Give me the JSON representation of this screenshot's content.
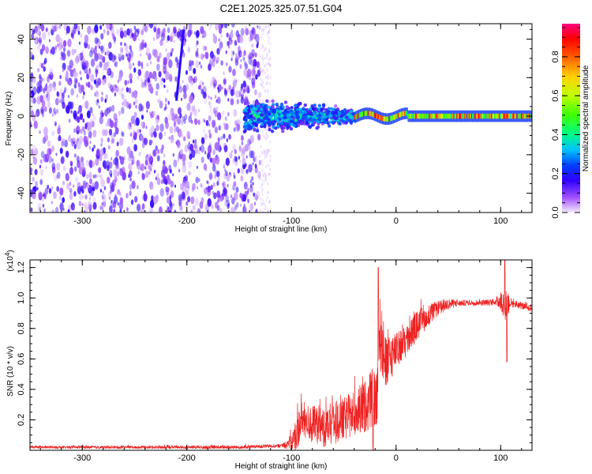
{
  "title": "C2E1.2025.325.07.51.G04",
  "chart_data": [
    {
      "type": "heatmap",
      "xlabel": "Height of straight line (km)",
      "ylabel": "Frequency (Hz)",
      "xlim": [
        -350,
        130
      ],
      "ylim": [
        -50,
        48
      ],
      "xticks": [
        -300,
        -200,
        -100,
        0,
        100
      ],
      "yticks": [
        -40,
        -20,
        0,
        20,
        40
      ],
      "colorbar": {
        "label": "Normalized spectral amplitude",
        "range": [
          0,
          0.97
        ],
        "ticks": [
          0.0,
          0.2,
          0.4,
          0.6,
          0.8
        ],
        "tick_labels": [
          "0.0",
          "0.2",
          "0.4",
          "0.6",
          "0.8"
        ],
        "colors": [
          "#f4ecff",
          "#a050ff",
          "#3000ff",
          "#0040ff",
          "#00c0ff",
          "#00ff80",
          "#40ff00",
          "#c0ff00",
          "#ffd000",
          "#ff6000",
          "#ff0000",
          "#ff0080"
        ]
      },
      "regions": [
        {
          "name": "noise",
          "x": [
            -350,
            -130
          ],
          "y": [
            -50,
            48
          ],
          "amplitude": [
            0.02,
            0.2
          ]
        },
        {
          "name": "turbulent",
          "x": [
            -145,
            -40
          ],
          "y": [
            -12,
            12
          ],
          "amplitude": [
            0.15,
            0.5
          ]
        },
        {
          "name": "stable-tone",
          "x": [
            -40,
            130
          ],
          "y": [
            -3,
            3
          ],
          "amplitude": [
            0.4,
            0.95
          ]
        }
      ],
      "streak": {
        "x": [
          -210,
          -203
        ],
        "y": [
          8,
          45
        ],
        "amplitude": 0.2
      }
    },
    {
      "type": "line",
      "xlabel": "Height of straight line (km)",
      "ylabel": "SNR (10 * v/v)",
      "y_multiplier": "(x10",
      "y_multiplier_exp": "4",
      "y_multiplier_close": ")",
      "xlim": [
        -350,
        130
      ],
      "ylim": [
        0,
        1.25
      ],
      "xticks": [
        -300,
        -200,
        -100,
        0,
        100
      ],
      "yticks": [
        0.2,
        0.4,
        0.6,
        0.8,
        1.0,
        1.2
      ],
      "ytick_labels": [
        "0.2",
        "0.4",
        "0.6",
        "0.8",
        "1.0",
        "1.2"
      ],
      "color": "#ee2222",
      "series_points": [
        [
          -350,
          0.02
        ],
        [
          -300,
          0.02
        ],
        [
          -250,
          0.02
        ],
        [
          -200,
          0.02
        ],
        [
          -150,
          0.02
        ],
        [
          -110,
          0.03
        ],
        [
          -100,
          0.05
        ],
        [
          -95,
          0.12
        ],
        [
          -90,
          0.2
        ],
        [
          -80,
          0.17
        ],
        [
          -70,
          0.15
        ],
        [
          -60,
          0.18
        ],
        [
          -50,
          0.2
        ],
        [
          -40,
          0.25
        ],
        [
          -30,
          0.28
        ],
        [
          -22,
          0.35
        ],
        [
          -18,
          0.3
        ],
        [
          -16,
          0.8
        ],
        [
          -10,
          0.55
        ],
        [
          -5,
          0.62
        ],
        [
          0,
          0.65
        ],
        [
          10,
          0.72
        ],
        [
          20,
          0.82
        ],
        [
          30,
          0.88
        ],
        [
          40,
          0.93
        ],
        [
          50,
          0.96
        ],
        [
          70,
          0.97
        ],
        [
          90,
          0.97
        ],
        [
          100,
          0.98
        ],
        [
          104,
          0.96
        ],
        [
          108,
          0.97
        ],
        [
          115,
          0.96
        ],
        [
          130,
          0.93
        ]
      ],
      "noise_amplitude": [
        [
          -350,
          0.008
        ],
        [
          -110,
          0.012
        ],
        [
          -100,
          0.05
        ],
        [
          -95,
          0.12
        ],
        [
          -40,
          0.15
        ],
        [
          -20,
          0.2
        ],
        [
          -16,
          0.25
        ],
        [
          0,
          0.12
        ],
        [
          20,
          0.1
        ],
        [
          40,
          0.05
        ],
        [
          60,
          0.02
        ],
        [
          95,
          0.02
        ],
        [
          100,
          0.07
        ],
        [
          106,
          0.12
        ],
        [
          110,
          0.03
        ],
        [
          130,
          0.02
        ]
      ],
      "spikes": [
        {
          "x": -17,
          "y": 1.2
        },
        {
          "x": -22,
          "y": 0.0
        },
        {
          "x": 104,
          "y": 1.25
        },
        {
          "x": 106,
          "y": 0.58
        }
      ]
    }
  ]
}
